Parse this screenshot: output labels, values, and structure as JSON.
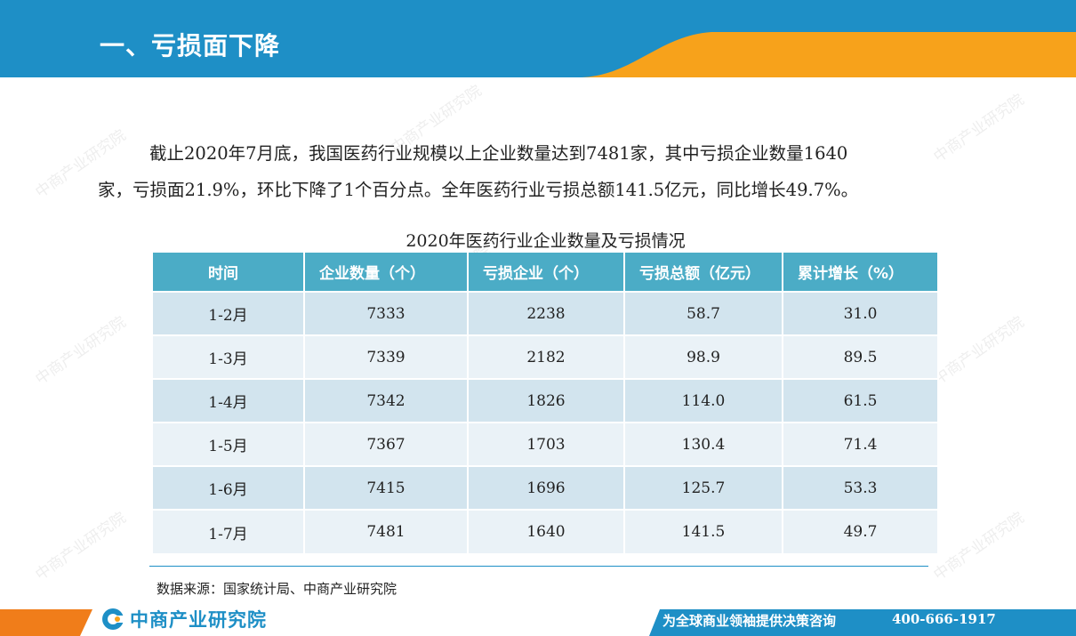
{
  "header": {
    "title": "一、亏损面下降"
  },
  "paragraph": {
    "line1": "截止2020年7月底，我国医药行业规模以上企业数量达到7481家，其中亏损企业数量1640",
    "line2": "家，亏损面21.9%，环比下降了1个百分点。全年医药行业亏损总额141.5亿元，同比增长49.7%。"
  },
  "table": {
    "title": "2020年医药行业企业数量及亏损情况",
    "headers": [
      "时间",
      "企业数量（个）",
      "亏损企业（个）",
      "亏损总额（亿元）",
      "累计增长（%）"
    ],
    "rows": [
      [
        "1-2月",
        "7333",
        "2238",
        "58.7",
        "31.0"
      ],
      [
        "1-3月",
        "7339",
        "2182",
        "98.9",
        "89.5"
      ],
      [
        "1-4月",
        "7342",
        "1826",
        "114.0",
        "61.5"
      ],
      [
        "1-5月",
        "7367",
        "1703",
        "130.4",
        "71.4"
      ],
      [
        "1-6月",
        "7415",
        "1696",
        "125.7",
        "53.3"
      ],
      [
        "1-7月",
        "7481",
        "1640",
        "141.5",
        "49.7"
      ]
    ]
  },
  "source": "数据来源：国家统计局、中商产业研究院",
  "footer": {
    "brand": "中商产业研究院",
    "slogan": "为全球商业领袖提供决策咨询",
    "phone": "400-666-1917"
  },
  "watermark": "中商产业研究院",
  "colors": {
    "blue": "#1e8fc6",
    "orange": "#f7a21b",
    "header_cell": "#4bacc6",
    "row_dark": "#d2e4ee",
    "row_light": "#eaf2f7"
  }
}
